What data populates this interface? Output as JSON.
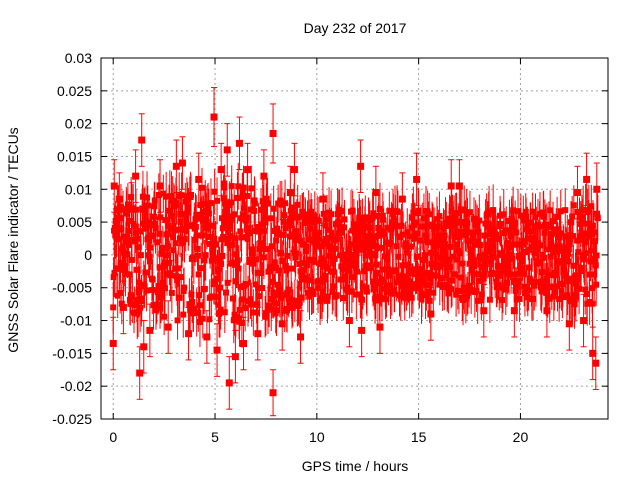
{
  "chart_data": {
    "type": "scatter",
    "title": "Day 232 of 2017",
    "xlabel": "GPS time / hours",
    "ylabel": "GNSS Solar Flare indicator / TECUs",
    "xlim": [
      -0.6,
      24.3
    ],
    "ylim": [
      -0.025,
      0.03
    ],
    "x_ticks": [
      0,
      5,
      10,
      15,
      20
    ],
    "y_ticks": [
      -0.025,
      -0.02,
      -0.015,
      -0.01,
      -0.005,
      0,
      0.005,
      0.01,
      0.015,
      0.02,
      0.025,
      0.03
    ],
    "x_tick_labels": [
      "0",
      "5",
      "10",
      "15",
      "20"
    ],
    "y_tick_labels": [
      "-0.025",
      "-0.02",
      "-0.015",
      "-0.01",
      "-0.005",
      "0",
      "0.005",
      "0.01",
      "0.015",
      "0.02",
      "0.025",
      "0.03"
    ],
    "grid": true,
    "series_color": "#ff0000",
    "marker": "square",
    "error_bars": true,
    "points": [
      {
        "x": 0.0,
        "y": -0.0135,
        "err": 0.004
      },
      {
        "x": 0.05,
        "y": 0.0105,
        "err": 0.004
      },
      {
        "x": 0.3,
        "y": 0.0085,
        "err": 0.004
      },
      {
        "x": 0.5,
        "y": -0.008,
        "err": 0.004
      },
      {
        "x": 0.9,
        "y": 0.007,
        "err": 0.004
      },
      {
        "x": 1.1,
        "y": 0.012,
        "err": 0.004
      },
      {
        "x": 1.3,
        "y": -0.018,
        "err": 0.004
      },
      {
        "x": 1.4,
        "y": 0.0175,
        "err": 0.004
      },
      {
        "x": 1.5,
        "y": -0.014,
        "err": 0.004
      },
      {
        "x": 1.8,
        "y": -0.0115,
        "err": 0.004
      },
      {
        "x": 2.3,
        "y": 0.0105,
        "err": 0.004
      },
      {
        "x": 2.7,
        "y": -0.011,
        "err": 0.004
      },
      {
        "x": 3.1,
        "y": 0.0135,
        "err": 0.004
      },
      {
        "x": 3.4,
        "y": 0.014,
        "err": 0.004
      },
      {
        "x": 3.7,
        "y": -0.012,
        "err": 0.004
      },
      {
        "x": 4.2,
        "y": 0.0115,
        "err": 0.004
      },
      {
        "x": 4.6,
        "y": -0.0125,
        "err": 0.004
      },
      {
        "x": 4.95,
        "y": 0.021,
        "err": 0.0045
      },
      {
        "x": 5.1,
        "y": -0.0145,
        "err": 0.004
      },
      {
        "x": 5.3,
        "y": 0.013,
        "err": 0.004
      },
      {
        "x": 5.6,
        "y": 0.016,
        "err": 0.004
      },
      {
        "x": 5.7,
        "y": -0.0195,
        "err": 0.004
      },
      {
        "x": 6.0,
        "y": -0.0155,
        "err": 0.004
      },
      {
        "x": 6.2,
        "y": 0.017,
        "err": 0.004
      },
      {
        "x": 6.4,
        "y": -0.0135,
        "err": 0.004
      },
      {
        "x": 6.6,
        "y": 0.013,
        "err": 0.004
      },
      {
        "x": 7.1,
        "y": -0.012,
        "err": 0.004
      },
      {
        "x": 7.4,
        "y": 0.012,
        "err": 0.004
      },
      {
        "x": 7.85,
        "y": 0.0185,
        "err": 0.0045
      },
      {
        "x": 7.85,
        "y": -0.021,
        "err": 0.0035
      },
      {
        "x": 8.3,
        "y": -0.0105,
        "err": 0.004
      },
      {
        "x": 8.7,
        "y": 0.0095,
        "err": 0.004
      },
      {
        "x": 8.9,
        "y": 0.013,
        "err": 0.004
      },
      {
        "x": 9.2,
        "y": -0.0125,
        "err": 0.004
      },
      {
        "x": 10.3,
        "y": 0.0085,
        "err": 0.004
      },
      {
        "x": 11.6,
        "y": -0.01,
        "err": 0.004
      },
      {
        "x": 12.15,
        "y": 0.0135,
        "err": 0.004
      },
      {
        "x": 12.2,
        "y": -0.0115,
        "err": 0.004
      },
      {
        "x": 12.9,
        "y": 0.0095,
        "err": 0.004
      },
      {
        "x": 13.1,
        "y": -0.011,
        "err": 0.004
      },
      {
        "x": 14.2,
        "y": 0.0085,
        "err": 0.004
      },
      {
        "x": 14.9,
        "y": 0.0115,
        "err": 0.004
      },
      {
        "x": 15.6,
        "y": -0.009,
        "err": 0.004
      },
      {
        "x": 16.6,
        "y": 0.0105,
        "err": 0.004
      },
      {
        "x": 17.0,
        "y": 0.0105,
        "err": 0.004
      },
      {
        "x": 18.2,
        "y": -0.0085,
        "err": 0.004
      },
      {
        "x": 19.7,
        "y": -0.0085,
        "err": 0.004
      },
      {
        "x": 21.3,
        "y": -0.0085,
        "err": 0.004
      },
      {
        "x": 22.4,
        "y": -0.0105,
        "err": 0.004
      },
      {
        "x": 22.8,
        "y": 0.0095,
        "err": 0.004
      },
      {
        "x": 23.1,
        "y": -0.01,
        "err": 0.004
      },
      {
        "x": 23.25,
        "y": 0.0115,
        "err": 0.004
      },
      {
        "x": 23.55,
        "y": -0.015,
        "err": 0.004
      },
      {
        "x": 23.7,
        "y": -0.0165,
        "err": 0.004
      },
      {
        "x": 23.75,
        "y": 0.01,
        "err": 0.004
      }
    ],
    "band": {
      "description": "dense continuous series every 30 s; envelope of point values (upper/lower) per hour",
      "hours": [
        0,
        1,
        2,
        3,
        4,
        5,
        6,
        7,
        8,
        9,
        10,
        11,
        12,
        13,
        14,
        15,
        16,
        17,
        18,
        19,
        20,
        21,
        22,
        23,
        23.8
      ],
      "upper": [
        0.008,
        0.009,
        0.009,
        0.01,
        0.01,
        0.011,
        0.011,
        0.01,
        0.009,
        0.008,
        0.007,
        0.007,
        0.007,
        0.007,
        0.007,
        0.007,
        0.007,
        0.007,
        0.007,
        0.007,
        0.007,
        0.007,
        0.007,
        0.008,
        0.008
      ],
      "lower": [
        -0.008,
        -0.009,
        -0.009,
        -0.01,
        -0.01,
        -0.011,
        -0.011,
        -0.01,
        -0.009,
        -0.008,
        -0.007,
        -0.007,
        -0.007,
        -0.007,
        -0.007,
        -0.007,
        -0.007,
        -0.007,
        -0.007,
        -0.007,
        -0.007,
        -0.007,
        -0.007,
        -0.008,
        -0.008
      ],
      "err": 0.004
    }
  }
}
